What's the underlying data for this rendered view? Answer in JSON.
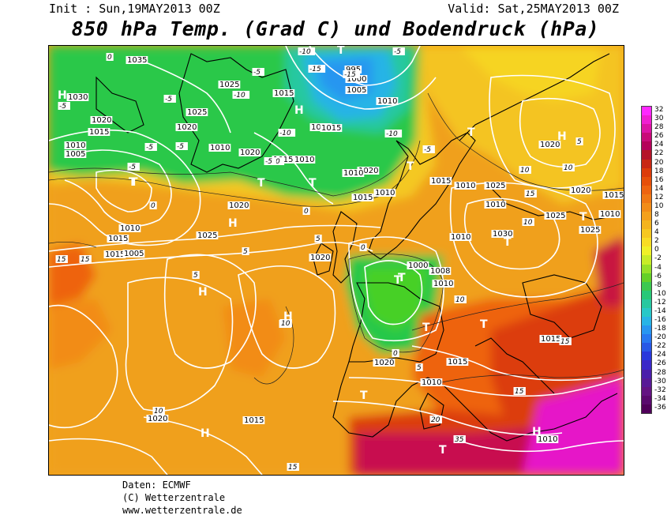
{
  "header": {
    "init": "Init : Sun,19MAY2013 00Z",
    "valid": "Valid: Sat,25MAY2013 00Z",
    "title": "850 hPa Temp. (Grad C) und Bodendruck (hPa)"
  },
  "legend": {
    "values": [
      "32",
      "30",
      "28",
      "26",
      "24",
      "22",
      "20",
      "18",
      "16",
      "14",
      "12",
      "10",
      "8",
      "6",
      "4",
      "2",
      "0",
      "-2",
      "-4",
      "-6",
      "-8",
      "-10",
      "-12",
      "-14",
      "-16",
      "-18",
      "-20",
      "-22",
      "-24",
      "-26",
      "-28",
      "-30",
      "-32",
      "-34",
      "-36"
    ],
    "colors": [
      "#ff28ff",
      "#f01ed2",
      "#dc14a5",
      "#c80a78",
      "#b4005a",
      "#b41428",
      "#c82814",
      "#dc3c0a",
      "#e6500a",
      "#ee6410",
      "#f07814",
      "#f28c18",
      "#f4a01c",
      "#f4b41e",
      "#f6c820",
      "#f8dc24",
      "#f0f028",
      "#c8ec28",
      "#96e028",
      "#64d028",
      "#3cc850",
      "#28c878",
      "#28c8a0",
      "#28c8c8",
      "#28b4e6",
      "#2896f0",
      "#2878f0",
      "#2858e6",
      "#2838dc",
      "#3a28c8",
      "#4a1eaa",
      "#581a96",
      "#641482",
      "#5a0a6e",
      "#50005a"
    ]
  },
  "footer": {
    "source": "Daten: ECMWF",
    "copyright": "(C) Wetterzentrale",
    "url": "www.wetterzentrale.de"
  },
  "map": {
    "pressure_labels": [
      "1035",
      "1030",
      "1025",
      "1020",
      "1015",
      "1010",
      "1005",
      "1025",
      "1015",
      "1020",
      "1010",
      "1020",
      "1015",
      "1010",
      "995",
      "1000",
      "1005",
      "1010",
      "1020",
      "1020",
      "1015",
      "1010",
      "1020",
      "1015",
      "1015",
      "1010",
      "1005",
      "1000",
      "1008",
      "1010",
      "1010",
      "1025",
      "1030",
      "1020",
      "1020",
      "1025",
      "1025",
      "1010",
      "1010",
      "1015",
      "1025",
      "1020",
      "1015",
      "1010",
      "1015",
      "1010",
      "1015",
      "1020",
      "1010",
      "1015",
      "1010",
      "1020",
      "1015"
    ],
    "temp_labels": [
      "0",
      "-5",
      "-5",
      "-5",
      "-10",
      "-10",
      "-15",
      "-15",
      "-5",
      "-10",
      "-10",
      "-5",
      "-5",
      "-5",
      "-10",
      "-5",
      "-5",
      "0",
      "0",
      "0",
      "5",
      "5",
      "5",
      "5",
      "0",
      "10",
      "10",
      "10",
      "15",
      "15",
      "15",
      "5",
      "15",
      "15",
      "10",
      "10",
      "15",
      "20",
      "35",
      "10",
      "10",
      "15"
    ],
    "systems": [
      "H",
      "H",
      "H",
      "H",
      "H",
      "H",
      "H",
      "H",
      "T",
      "T",
      "T",
      "T",
      "T",
      "T",
      "T",
      "T",
      "T",
      "T",
      "T",
      "T",
      "T",
      "T",
      "T"
    ]
  }
}
